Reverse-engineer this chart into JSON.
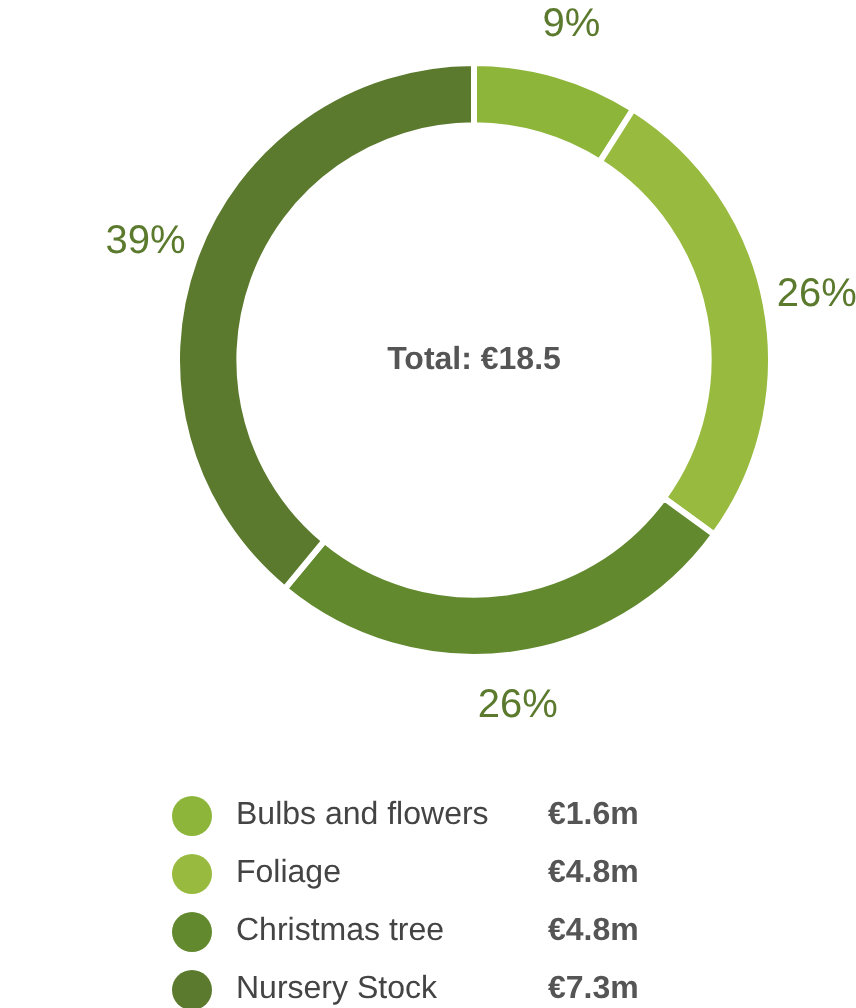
{
  "chart_data": {
    "type": "donut",
    "categories": [
      "Bulbs and flowers",
      "Foliage",
      "Christmas tree",
      "Nursery Stock"
    ],
    "values": [
      9,
      26,
      26,
      39
    ],
    "colors": [
      "#8db53a",
      "#97ba3f",
      "#62892e",
      "#5b7a2e"
    ],
    "value_labels": [
      "9%",
      "26%",
      "26%",
      "39%"
    ],
    "annotations": [
      "Total: €18.5",
      {
        "text": "€1.6m",
        "x": "Bulbs and flowers"
      },
      {
        "text": "€4.8m",
        "x": "Foliage"
      },
      {
        "text": "€4.8m",
        "x": "Christmas tree"
      },
      {
        "text": "€7.3m",
        "x": "Nursery Stock"
      }
    ],
    "legend": "bottom"
  }
}
